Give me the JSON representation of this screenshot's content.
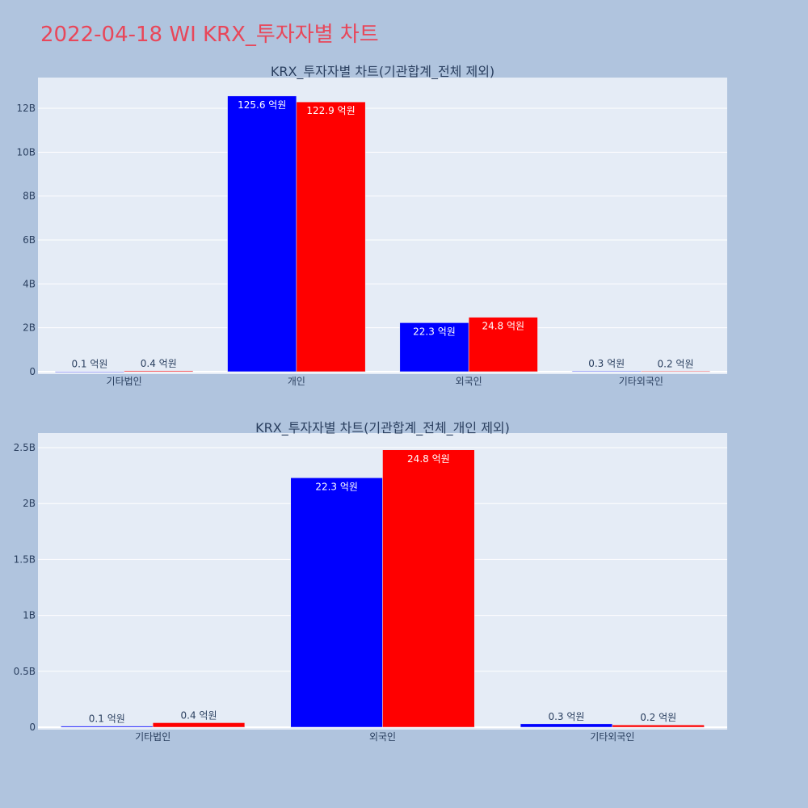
{
  "title": "2022-04-18 WI KRX_투자자별 차트",
  "colors": {
    "page_bg": "#b0c4de",
    "plot_bg": "#e5ecf6",
    "buy": "#0000ff",
    "sell": "#ff0000",
    "title": "#e8475a",
    "text": "#2a3f5f"
  },
  "chart_data": [
    {
      "type": "bar",
      "title": "KRX_투자자별 차트(기관합계_전체 제외)",
      "categories": [
        "기타법인",
        "개인",
        "외국인",
        "기타외국인"
      ],
      "series": [
        {
          "color": "#0000ff",
          "values": [
            10000000,
            12560000000,
            2230000000,
            30000000
          ],
          "labels": [
            "0.1 억원",
            "125.6 억원",
            "22.3 억원",
            "0.3 억원"
          ]
        },
        {
          "color": "#ff0000",
          "values": [
            40000000,
            12290000000,
            2480000000,
            20000000
          ],
          "labels": [
            "0.4 억원",
            "122.9 억원",
            "24.8 억원",
            "0.2 억원"
          ]
        }
      ],
      "ylim": [
        0,
        13400000000
      ],
      "yticks": [
        0,
        2000000000,
        4000000000,
        6000000000,
        8000000000,
        10000000000,
        12000000000
      ],
      "ytick_labels": [
        "0",
        "2B",
        "4B",
        "6B",
        "8B",
        "10B",
        "12B"
      ],
      "grid": true,
      "legend": "none"
    },
    {
      "type": "bar",
      "title": "KRX_투자자별 차트(기관합계_전체_개인 제외)",
      "categories": [
        "기타법인",
        "외국인",
        "기타외국인"
      ],
      "series": [
        {
          "color": "#0000ff",
          "values": [
            10000000,
            2230000000,
            30000000
          ],
          "labels": [
            "0.1 억원",
            "22.3 억원",
            "0.3 억원"
          ]
        },
        {
          "color": "#ff0000",
          "values": [
            40000000,
            2480000000,
            20000000
          ],
          "labels": [
            "0.4 억원",
            "24.8 억원",
            "0.2 억원"
          ]
        }
      ],
      "ylim": [
        0,
        2630000000
      ],
      "yticks": [
        0,
        500000000,
        1000000000,
        1500000000,
        2000000000,
        2500000000
      ],
      "ytick_labels": [
        "0",
        "0.5B",
        "1B",
        "1.5B",
        "2B",
        "2.5B"
      ],
      "grid": true,
      "legend": "none"
    }
  ]
}
